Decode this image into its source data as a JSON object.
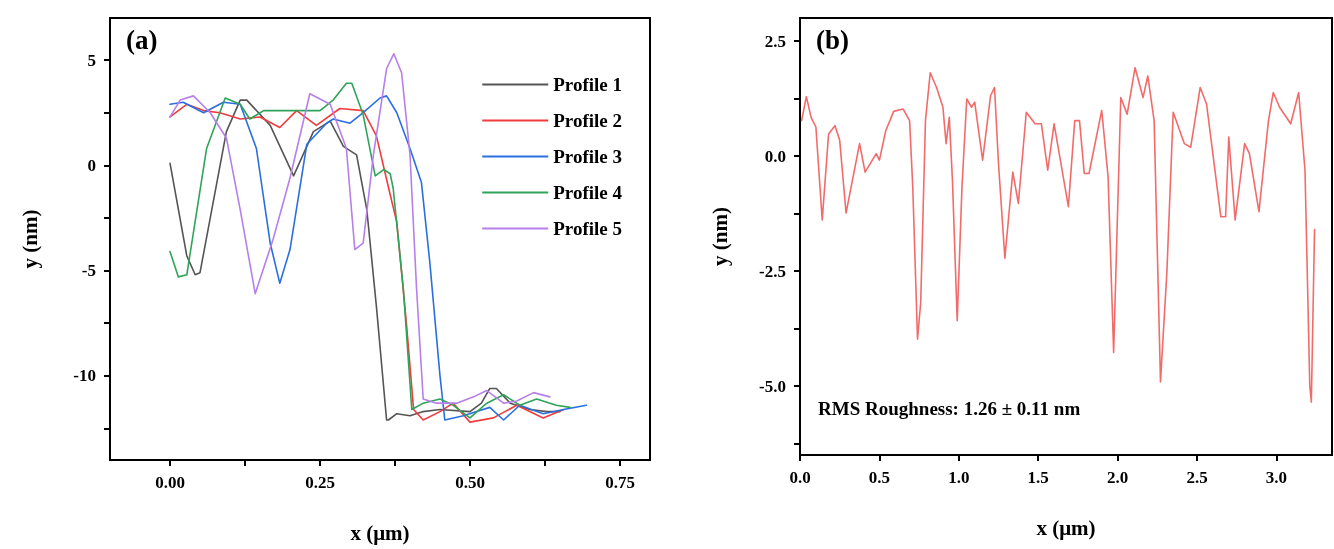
{
  "chart_data": [
    {
      "type": "line",
      "xlabel": "x (μm)",
      "ylabel": "y (nm)",
      "annotations": [
        "(a)"
      ],
      "xlim": [
        -0.1,
        0.8
      ],
      "ylim": [
        -14,
        7
      ],
      "xticks": [
        {
          "value": 0,
          "label": "0.00"
        },
        {
          "value": 0.125,
          "label": null
        },
        {
          "value": 0.25,
          "label": "0.25"
        },
        {
          "value": 0.375,
          "label": null
        },
        {
          "value": 0.5,
          "label": "0.50"
        },
        {
          "value": 0.625,
          "label": null
        },
        {
          "value": 0.75,
          "label": "0.75"
        }
      ],
      "yticks": [
        {
          "value": -12.5,
          "label": null
        },
        -10,
        {
          "value": -7.5,
          "label": null
        },
        -5,
        {
          "value": -2.5,
          "label": null
        },
        0,
        {
          "value": 2.5,
          "label": null
        },
        5
      ],
      "grid": false,
      "legend": "top right",
      "marker": "none",
      "line_style": "solid",
      "series": [
        {
          "name": "Profile 1",
          "color": "#555555",
          "x": [
            0,
            0.028,
            0.042,
            0.05,
            0.094,
            0.117,
            0.128,
            0.167,
            0.206,
            0.239,
            0.267,
            0.289,
            0.311,
            0.328,
            0.344,
            0.361,
            0.364,
            0.378,
            0.4,
            0.422,
            0.45,
            0.5,
            0.519,
            0.533,
            0.544,
            0.567,
            0.6,
            0.628,
            0.65
          ],
          "values": [
            0.1,
            -4.3,
            -5.2,
            -5.1,
            1.6,
            3.1,
            3.1,
            1.9,
            -0.5,
            1.6,
            2.1,
            0.9,
            0.5,
            -2.1,
            -6.7,
            -12.1,
            -12.1,
            -11.8,
            -11.9,
            -11.7,
            -11.6,
            -11.7,
            -11.3,
            -10.6,
            -10.6,
            -11.3,
            -11.6,
            -11.7,
            -11.7
          ]
        },
        {
          "name": "Profile 2",
          "color": "#f03c3c",
          "x": [
            0,
            0.028,
            0.056,
            0.083,
            0.117,
            0.15,
            0.183,
            0.211,
            0.244,
            0.283,
            0.322,
            0.344,
            0.367,
            0.378,
            0.394,
            0.406,
            0.422,
            0.45,
            0.472,
            0.5,
            0.539,
            0.578,
            0.622,
            0.656
          ],
          "values": [
            2.3,
            2.9,
            2.6,
            2.5,
            2.2,
            2.3,
            1.8,
            2.6,
            1.9,
            2.7,
            2.6,
            1.4,
            -1.4,
            -2.7,
            -7.5,
            -11.6,
            -12.1,
            -11.7,
            -11.3,
            -12.2,
            -12,
            -11.4,
            -12,
            -11.6
          ]
        },
        {
          "name": "Profile 3",
          "color": "#2a6fe0",
          "x": [
            0,
            0.022,
            0.056,
            0.089,
            0.117,
            0.144,
            0.167,
            0.183,
            0.2,
            0.228,
            0.261,
            0.272,
            0.3,
            0.322,
            0.35,
            0.361,
            0.378,
            0.4,
            0.419,
            0.433,
            0.45,
            0.458,
            0.489,
            0.511,
            0.533,
            0.556,
            0.583,
            0.622,
            0.656,
            0.694
          ],
          "values": [
            2.9,
            3,
            2.5,
            3,
            2.9,
            0.8,
            -3.7,
            -5.6,
            -4,
            1,
            2,
            2.2,
            2,
            2.5,
            3.2,
            3.3,
            2.5,
            0.8,
            -0.8,
            -4.6,
            -10,
            -12.1,
            -11.9,
            -11.7,
            -11.5,
            -12.1,
            -11.4,
            -11.8,
            -11.6,
            -11.4
          ]
        },
        {
          "name": "Profile 4",
          "color": "#2fa35a",
          "x": [
            0,
            0.014,
            0.028,
            0.061,
            0.092,
            0.117,
            0.133,
            0.156,
            0.206,
            0.25,
            0.272,
            0.294,
            0.303,
            0.322,
            0.342,
            0.356,
            0.367,
            0.372,
            0.389,
            0.403,
            0.422,
            0.45,
            0.472,
            0.5,
            0.528,
            0.556,
            0.583,
            0.611,
            0.644,
            0.667
          ],
          "values": [
            -4.1,
            -5.3,
            -5.2,
            0.8,
            3.2,
            2.9,
            2.2,
            2.6,
            2.6,
            2.6,
            3.1,
            3.9,
            3.9,
            2.4,
            -0.5,
            -0.2,
            -0.4,
            -1.1,
            -5.9,
            -11.6,
            -11.3,
            -11.1,
            -11.4,
            -12,
            -11.3,
            -10.9,
            -11.4,
            -11.1,
            -11.4,
            -11.5
          ]
        },
        {
          "name": "Profile 5",
          "color": "#b77fe8",
          "x": [
            0,
            0.017,
            0.039,
            0.067,
            0.094,
            0.117,
            0.142,
            0.172,
            0.2,
            0.233,
            0.267,
            0.294,
            0.308,
            0.322,
            0.339,
            0.361,
            0.373,
            0.386,
            0.4,
            0.411,
            0.422,
            0.444,
            0.478,
            0.506,
            0.528,
            0.556,
            0.578,
            0.606,
            0.633
          ],
          "values": [
            2.3,
            3.1,
            3.3,
            2.5,
            1.3,
            -2.1,
            -6.1,
            -3.5,
            -0.6,
            3.4,
            2.9,
            0.8,
            -4,
            -3.7,
            0.5,
            4.6,
            5.3,
            4.4,
            0.5,
            -5.9,
            -11.1,
            -11.3,
            -11.3,
            -11,
            -10.7,
            -11.3,
            -11.2,
            -10.8,
            -11
          ]
        }
      ]
    },
    {
      "type": "line",
      "xlabel": "x (μm)",
      "ylabel": "y (nm)",
      "annotations": [
        "(b)",
        "RMS Roughness: 1.26 ± 0.11 nm"
      ],
      "xlim": [
        0,
        3.35
      ],
      "ylim": [
        -6.5,
        3
      ],
      "xticks": [
        {
          "value": 0,
          "label": "0.0"
        },
        {
          "value": 0.5,
          "label": "0.5"
        },
        {
          "value": 1,
          "label": "1.0"
        },
        {
          "value": 1.5,
          "label": "1.5"
        },
        {
          "value": 2,
          "label": "2.0"
        },
        {
          "value": 2.5,
          "label": "2.5"
        },
        {
          "value": 3,
          "label": "3.0"
        }
      ],
      "yticks": [
        {
          "value": -6.25,
          "label": null
        },
        {
          "value": -5,
          "label": "-5.0"
        },
        {
          "value": -3.75,
          "label": null
        },
        {
          "value": -2.5,
          "label": "-2.5"
        },
        {
          "value": -1.25,
          "label": null
        },
        {
          "value": 0,
          "label": "0.0"
        },
        {
          "value": 1.25,
          "label": null
        },
        {
          "value": 2.5,
          "label": "2.5"
        }
      ],
      "grid": false,
      "legend": false,
      "marker": "none",
      "line_style": "solid",
      "series": [
        {
          "color": "#f26b6b",
          "x": [
            0.01,
            0.04,
            0.07,
            0.1,
            0.14,
            0.18,
            0.22,
            0.25,
            0.29,
            0.33,
            0.375,
            0.41,
            0.48,
            0.5,
            0.54,
            0.59,
            0.65,
            0.69,
            0.71,
            0.74,
            0.76,
            0.79,
            0.82,
            0.86,
            0.9,
            0.92,
            0.94,
            0.96,
            0.99,
            1.02,
            1.05,
            1.08,
            1.1,
            1.15,
            1.2,
            1.225,
            1.25,
            1.29,
            1.34,
            1.375,
            1.425,
            1.48,
            1.52,
            1.56,
            1.6,
            1.69,
            1.73,
            1.76,
            1.79,
            1.82,
            1.9,
            1.94,
            1.975,
            2.02,
            2.06,
            2.11,
            2.16,
            2.19,
            2.23,
            2.27,
            2.31,
            2.35,
            2.42,
            2.46,
            2.52,
            2.56,
            2.65,
            2.68,
            2.7,
            2.74,
            2.8,
            2.83,
            2.89,
            2.95,
            2.98,
            3.02,
            3.09,
            3.14,
            3.18,
            3.21,
            3.22,
            3.24
          ],
          "values": [
            0.77,
            1.29,
            0.84,
            0.63,
            -1.39,
            0.48,
            0.66,
            0.34,
            -1.24,
            -0.53,
            0.27,
            -0.35,
            0.05,
            -0.09,
            0.55,
            0.97,
            1.02,
            0.77,
            -0.67,
            -3.98,
            -3.19,
            0.77,
            1.81,
            1.49,
            1.06,
            0.27,
            0.84,
            -0.53,
            -3.58,
            -0.67,
            1.24,
            1.06,
            1.17,
            -0.09,
            1.31,
            1.49,
            -0.17,
            -2.22,
            -0.35,
            -1.03,
            0.95,
            0.7,
            0.7,
            -0.31,
            0.7,
            -1.1,
            0.77,
            0.77,
            -0.38,
            -0.38,
            0.99,
            -0.45,
            -4.27,
            1.27,
            0.91,
            1.92,
            1.27,
            1.74,
            0.77,
            -4.91,
            -2.54,
            0.95,
            0.27,
            0.19,
            1.49,
            1.13,
            -1.32,
            -1.32,
            0.41,
            -1.39,
            0.27,
            0.05,
            -1.21,
            0.77,
            1.38,
            1.06,
            0.7,
            1.38,
            -0.31,
            -4.99,
            -5.35,
            -1.6
          ]
        }
      ]
    }
  ]
}
